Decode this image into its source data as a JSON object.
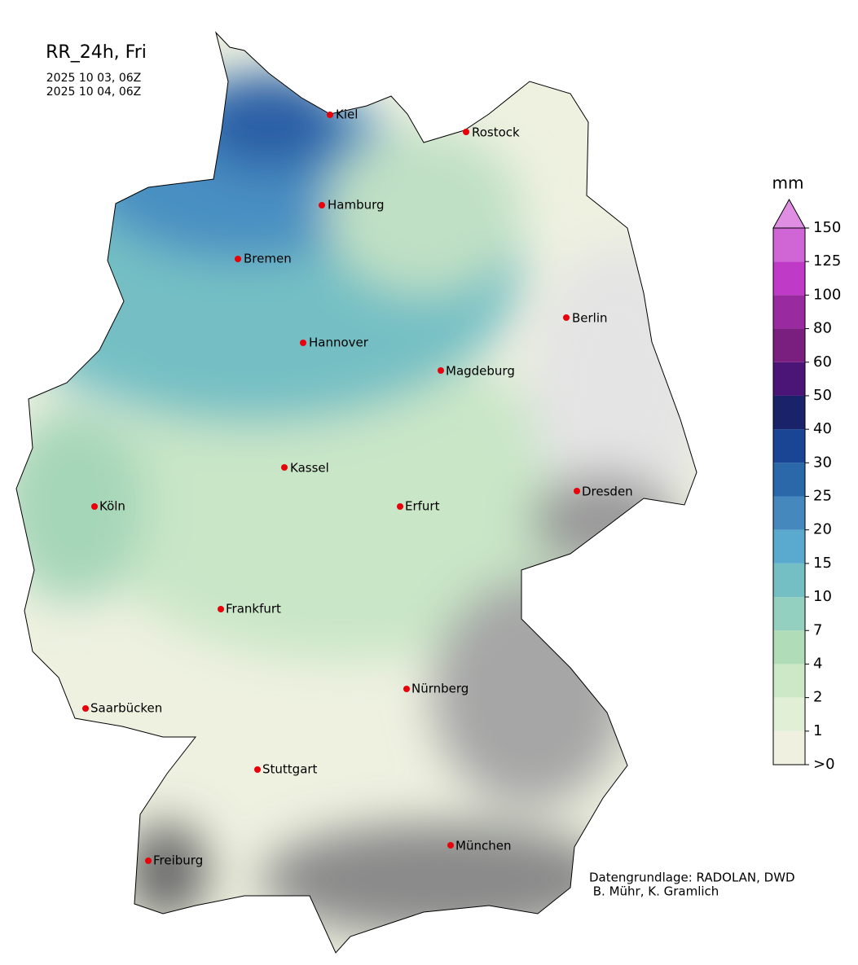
{
  "header": {
    "title": "RR_24h, Fri",
    "dates": [
      "2025 10 03, 06Z",
      "2025 10 04, 06Z"
    ]
  },
  "cities": [
    "Kiel",
    "Rostock",
    "Hamburg",
    "Bremen",
    "Berlin",
    "Hannover",
    "Magdeburg",
    "Kassel",
    "Dresden",
    "Köln",
    "Erfurt",
    "Frankfurt",
    "Nürnberg",
    "Saarbücken",
    "Stuttgart",
    "München",
    "Freiburg"
  ],
  "colorbar": {
    "unit": "mm",
    "ticks": [
      {
        "value": 0,
        "label": ">0"
      },
      1,
      2,
      4,
      7,
      10,
      15,
      20,
      25,
      30,
      40,
      50,
      60,
      80,
      100,
      125,
      150
    ],
    "colors": [
      "#f0f0e0",
      "#e0efd6",
      "#cde8c6",
      "#b0dcb8",
      "#94d0c0",
      "#74bfc4",
      "#5aaad0",
      "#4588bd",
      "#2a68aa",
      "#1a4594",
      "#1a236a",
      "#4a1577",
      "#7a1f7f",
      "#9a2aa0",
      "#bf3ac6",
      "#d066d6"
    ],
    "extend_color": "#e08ee4"
  },
  "credits": [
    "Datengrundlage: RADOLAN, DWD",
    " B. Mühr, K. Gramlich"
  ]
}
